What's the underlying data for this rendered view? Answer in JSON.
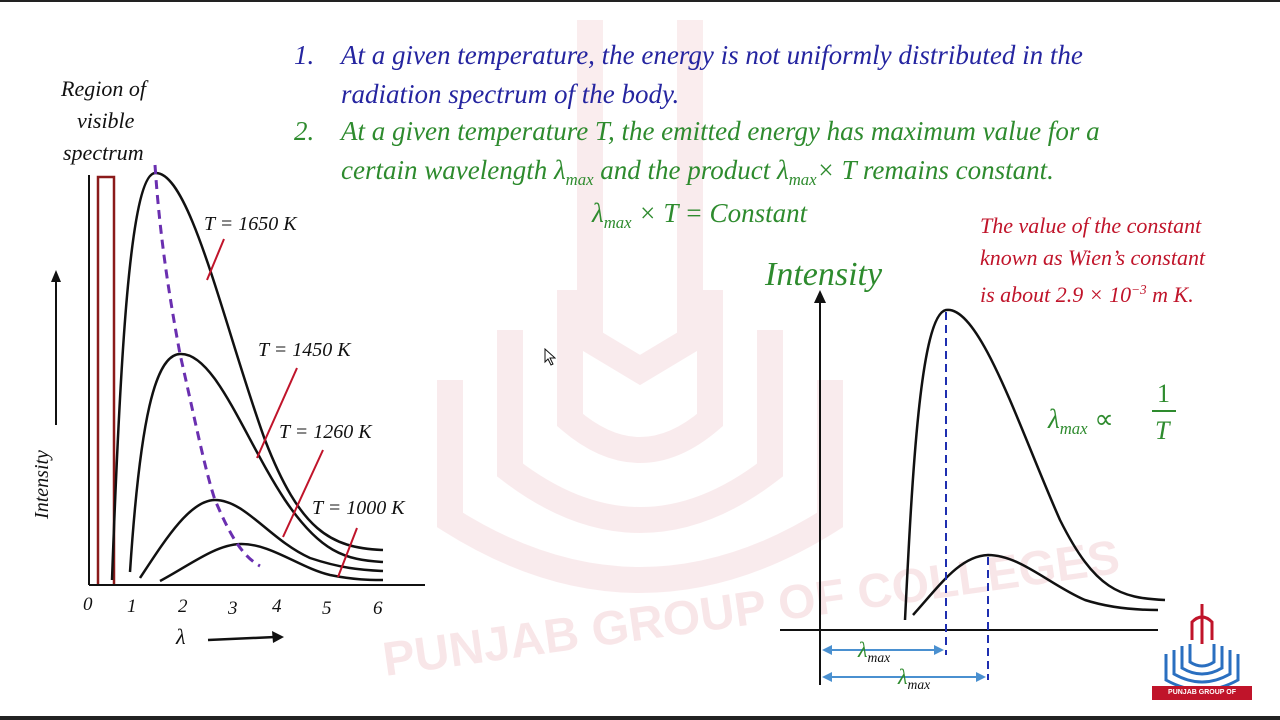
{
  "points": [
    {
      "number": "1.",
      "text_line1": "At a given temperature, the energy is not uniformly distributed  in the",
      "text_line2": "radiation spectrum of the body."
    },
    {
      "number": "2.",
      "text_line1": "At a given temperature T, the emitted energy has maximum value for a",
      "text_line2_a": "certain wavelength λ",
      "text_line2_sub1": "max",
      "text_line2_b": " and the product λ",
      "text_line2_sub2": "max",
      "text_line2_c": "× T remains constant."
    }
  ],
  "formula": {
    "lambda": "λ",
    "sub": "max",
    "rest": "× T = Constant"
  },
  "wien_note": {
    "line1": "The value of the constant",
    "line2": "known as Wien’s constant",
    "line3_a": "is about 2.9 × 10",
    "line3_sup": "−3",
    "line3_b": " m K."
  },
  "left_graph": {
    "region_label": [
      "Region of",
      "visible",
      "spectrum"
    ],
    "y_label": "Intensity",
    "x_label": "λ",
    "x_ticks": [
      "0",
      "1",
      "2",
      "3",
      "4",
      "5",
      "6"
    ],
    "curve_labels": [
      "T = 1650 K",
      "T = 1450 K",
      "T = 1260 K",
      "T = 1000 K"
    ]
  },
  "right_graph": {
    "y_label": "Intensity",
    "proportional_lambda": "λ",
    "proportional_sub": "max",
    "proportional_sym": "∝",
    "fraction_num": "1",
    "fraction_den": "T",
    "lambda_label1": "λ",
    "lambda_sub1": "max",
    "lambda_label2": "λ",
    "lambda_sub2": "max"
  },
  "watermark": "PUNJAB GROUP OF COLLEGES",
  "logo_text": "PUNJAB GROUP OF COLLEGES",
  "colors": {
    "blue_text": "#2525a0",
    "green_text": "#2e8b2e",
    "red_text": "#c0142a",
    "dash_purple": "#6a2fb0",
    "dash_blue": "#1f2fb0",
    "arrow_blue": "#4a90d0"
  }
}
